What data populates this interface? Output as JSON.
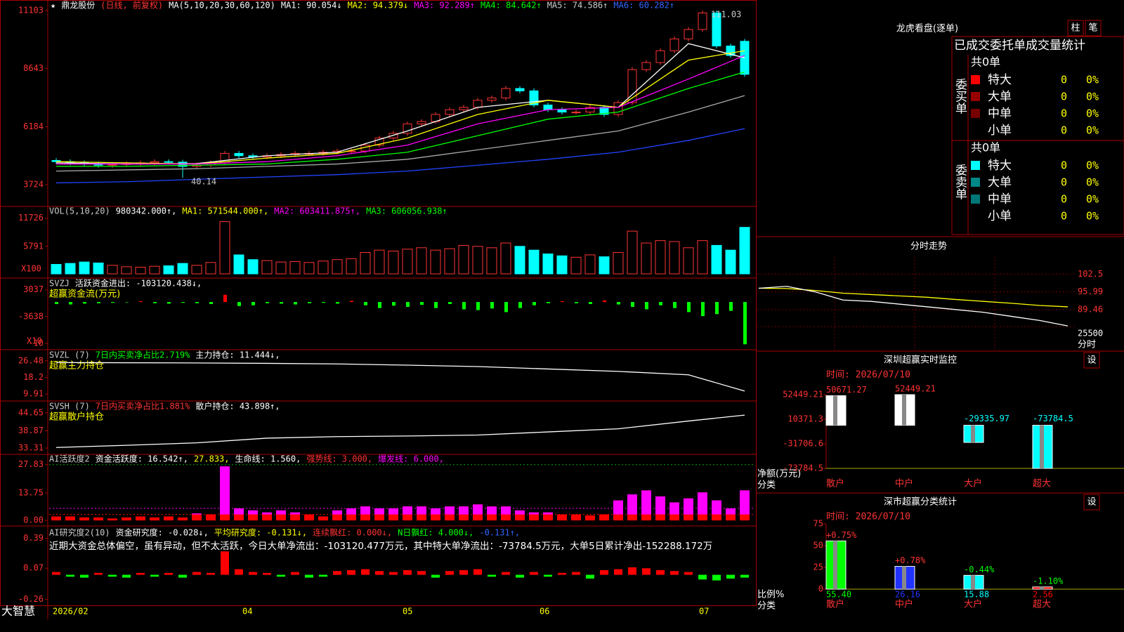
{
  "main": {
    "star": "★",
    "name": "鼎龙股份",
    "mode": "(日线, 前复权)",
    "ma_label": "MA(5,10,20,30,60,120)",
    "ma_readouts": [
      {
        "text": "MA1: 90.054↓",
        "color": "#ffffff"
      },
      {
        "text": "MA2: 94.379↓",
        "color": "#ffff00"
      },
      {
        "text": "MA3: 92.289↑",
        "color": "#ff00ff"
      },
      {
        "text": "MA4: 84.642↑",
        "color": "#00ff00"
      },
      {
        "text": "MA5: 74.586↑",
        "color": "#cccccc"
      },
      {
        "text": "MA6: 60.282↑",
        "color": "#3366ff"
      }
    ],
    "ylim": [
      2831,
      11549
    ],
    "yticks": [
      11103,
      8643,
      6184,
      3724
    ],
    "high_label": "111.03",
    "low_label": "40.14",
    "up_color": "#ff3333",
    "down_color": "#00ffff",
    "candles": {
      "open": [
        4750,
        4700,
        4650,
        4600,
        4550,
        4580,
        4620,
        4650,
        4700,
        4680,
        4500,
        4560,
        4650,
        5050,
        4950,
        4900,
        4950,
        5000,
        5050,
        5050,
        5100,
        5150,
        5150,
        5400,
        5700,
        5900,
        6300,
        6400,
        6700,
        6900,
        7000,
        7300,
        7400,
        7800,
        7700,
        7100,
        6900,
        6800,
        6800,
        7000,
        6700,
        7200,
        8600,
        8900,
        9400,
        9900,
        10300,
        11000,
        9600,
        9800
      ],
      "close": [
        4700,
        4650,
        4600,
        4550,
        4580,
        4620,
        4650,
        4700,
        4680,
        4500,
        4560,
        4650,
        5050,
        4950,
        4900,
        4950,
        5000,
        5050,
        5050,
        5100,
        5150,
        5150,
        5400,
        5700,
        5900,
        6300,
        6400,
        6700,
        6900,
        7000,
        7300,
        7400,
        7800,
        7700,
        7100,
        6900,
        6800,
        6800,
        7000,
        6700,
        7200,
        8600,
        8900,
        9400,
        9900,
        10300,
        11000,
        9600,
        9200,
        8400
      ],
      "high": [
        4850,
        4800,
        4750,
        4700,
        4680,
        4720,
        4750,
        4800,
        4800,
        4780,
        4660,
        4750,
        5150,
        5150,
        5050,
        5050,
        5100,
        5150,
        5150,
        5200,
        5250,
        5250,
        5500,
        5800,
        6000,
        6400,
        6500,
        6800,
        7000,
        7100,
        7400,
        7500,
        7900,
        7900,
        7800,
        7200,
        7000,
        6900,
        7100,
        7100,
        7300,
        8700,
        9000,
        9500,
        10000,
        10400,
        11103,
        11100,
        9700,
        9900
      ],
      "low": [
        4600,
        4550,
        4500,
        4450,
        4450,
        4480,
        4520,
        4550,
        4580,
        4014,
        4400,
        4460,
        4550,
        4850,
        4800,
        4800,
        4850,
        4900,
        4950,
        4950,
        5000,
        5050,
        5050,
        5300,
        5600,
        5800,
        6200,
        6300,
        6600,
        6800,
        6900,
        7200,
        7300,
        7600,
        7000,
        6800,
        6700,
        6700,
        6700,
        6600,
        6600,
        7100,
        8500,
        8800,
        9300,
        9800,
        10200,
        9500,
        9100,
        8300
      ]
    },
    "ma_x": [
      0,
      5,
      10,
      15,
      20,
      25,
      30,
      35,
      40,
      45,
      49
    ],
    "ma_lines": [
      {
        "color": "#ffffff",
        "values": [
          4650,
          4600,
          4620,
          4950,
          5100,
          6000,
          7000,
          7300,
          7000,
          9700,
          9100
        ]
      },
      {
        "color": "#ffff00",
        "values": [
          4700,
          4650,
          4600,
          4850,
          5050,
          5700,
          6700,
          7300,
          7000,
          9000,
          9400
        ]
      },
      {
        "color": "#ff00ff",
        "values": [
          4600,
          4600,
          4600,
          4700,
          4950,
          5400,
          6300,
          6900,
          7000,
          8200,
          9200
        ]
      },
      {
        "color": "#00ff00",
        "values": [
          4500,
          4500,
          4550,
          4600,
          4800,
          5100,
          5800,
          6500,
          6800,
          7800,
          8500
        ]
      },
      {
        "color": "#aaaaaa",
        "values": [
          4300,
          4350,
          4400,
          4500,
          4600,
          4800,
          5200,
          5600,
          6000,
          6800,
          7500
        ]
      },
      {
        "color": "#2244ff",
        "values": [
          3800,
          3850,
          3950,
          4050,
          4150,
          4300,
          4550,
          4800,
          5100,
          5600,
          6100
        ]
      }
    ]
  },
  "vol": {
    "header": [
      {
        "text": "VOL(5,10,20)",
        "color": "#cccccc"
      },
      {
        "text": "980342.000↑,",
        "color": "#ffffff"
      },
      {
        "text": "MA1: 571544.000↑,",
        "color": "#ffff00"
      },
      {
        "text": "MA2: 603411.875↑,",
        "color": "#ff00ff"
      },
      {
        "text": "MA3: 606056.938↑",
        "color": "#00ff00"
      }
    ],
    "ylim": [
      0,
      13900
    ],
    "yticks": [
      11726,
      5791
    ],
    "unit": "X100",
    "values": [
      2000,
      2200,
      2500,
      2300,
      1800,
      1500,
      1400,
      1600,
      1700,
      2200,
      1800,
      2400,
      11000,
      4000,
      3000,
      2800,
      2500,
      2600,
      2400,
      2700,
      3000,
      3200,
      4500,
      5000,
      4800,
      5200,
      5500,
      5000,
      5300,
      6000,
      5800,
      5500,
      6500,
      5800,
      5000,
      4200,
      3800,
      3500,
      4000,
      3600,
      4500,
      9000,
      6500,
      7000,
      6800,
      5500,
      7000,
      6000,
      5000,
      9800
    ]
  },
  "svzj": {
    "header": [
      {
        "text": "SVZJ",
        "color": "#cccccc"
      },
      {
        "text": "活跃资金进出: -103120.438↓,",
        "color": "#ffffff"
      }
    ],
    "subtitle": "超赢资金流(万元)",
    "subtitle_color": "#ffff00",
    "ylim": [
      -11500,
      5600
    ],
    "yticks": [
      3037,
      -3638,
      {
        "value": -10313,
        "label": "-10"
      }
    ],
    "unit": "X10",
    "pos_color": "#ff0000",
    "neg_color": "#00ff00",
    "values": [
      -500,
      -600,
      -400,
      -300,
      -200,
      -100,
      200,
      -300,
      -400,
      -200,
      -300,
      -500,
      1800,
      -1000,
      -800,
      -300,
      -400,
      -600,
      -300,
      -200,
      -400,
      300,
      -800,
      -1500,
      -900,
      -1200,
      -700,
      -1500,
      -500,
      -1800,
      -2000,
      -1600,
      -2500,
      -1500,
      -800,
      -300,
      200,
      -300,
      -500,
      400,
      -600,
      -1200,
      -1800,
      -800,
      -1500,
      -2500,
      -3500,
      -3000,
      -2200,
      -10500
    ]
  },
  "svzl": {
    "header": [
      {
        "text": "SVZL (7)",
        "color": "#cccccc"
      },
      {
        "text": "7日内买卖净占比2.719%",
        "color": "#00ff00"
      },
      {
        "text": "主力持仓: 11.444↓,",
        "color": "#ffffff"
      }
    ],
    "subtitle": "超赢主力持仓",
    "subtitle_color": "#ffff00",
    "ylim": [
      7.15,
      31.3
    ],
    "yticks": [
      26.48,
      18.2,
      9.91
    ],
    "x": [
      0,
      5,
      10,
      15,
      20,
      25,
      30,
      35,
      40,
      45,
      49
    ],
    "values": [
      25.6,
      25.5,
      25.4,
      25.2,
      24.9,
      24.3,
      23.6,
      22.4,
      21.2,
      19.5,
      11.4
    ]
  },
  "svsh": {
    "header": [
      {
        "text": "SVSH (7)",
        "color": "#cccccc"
      },
      {
        "text": "7日内买卖净占比1.881%",
        "color": "#ff3333"
      },
      {
        "text": "散户持仓: 43.898↑,",
        "color": "#ffffff"
      }
    ],
    "subtitle": "超赢散户持仓",
    "subtitle_color": "#ffff00",
    "ylim": [
      31.75,
      47.99
    ],
    "yticks": [
      44.65,
      38.87,
      33.31
    ],
    "x": [
      0,
      5,
      10,
      15,
      20,
      25,
      30,
      35,
      40,
      45,
      49
    ],
    "values": [
      33.5,
      34.2,
      35,
      36.5,
      37,
      37.2,
      37.5,
      38.5,
      39.5,
      42,
      43.9
    ]
  },
  "ai": {
    "header": [
      {
        "text": "AI活跃度2",
        "color": "#cccccc"
      },
      {
        "text": "资金活跃度: 16.542↑,",
        "color": "#ffffff"
      },
      {
        "text": "27.833,",
        "color": "#ffff00"
      },
      {
        "text": "生命线: 1.560,",
        "color": "#ffffff"
      },
      {
        "text": "强势线: 3.000,",
        "color": "#ff3333"
      },
      {
        "text": "爆发线: 6.000,",
        "color": "#ff00ff"
      }
    ],
    "ylim": [
      -2.06,
      32.3
    ],
    "yticks": [
      27.83,
      13.75,
      {
        "value": 0,
        "label": "0.00"
      }
    ],
    "strong": 3,
    "burst": 6,
    "base_color": "#ff0000",
    "top_color": "#ff00ff",
    "values": [
      2,
      2,
      1.5,
      1.5,
      1,
      1.5,
      2,
      1.5,
      2,
      1.5,
      3.5,
      3,
      27,
      6,
      5,
      4,
      5,
      4,
      3,
      2,
      5,
      6,
      7,
      6,
      6,
      7,
      7,
      6,
      7,
      7,
      8,
      7,
      7,
      5,
      4,
      4,
      3,
      3,
      2.5,
      3,
      10,
      13,
      15,
      12,
      9,
      11,
      14,
      10,
      6,
      15
    ]
  },
  "research": {
    "header": [
      {
        "text": "AI研究度2(10)",
        "color": "#cccccc"
      },
      {
        "text": "资金研究度: -0.028↓,",
        "color": "#ffffff"
      },
      {
        "text": "平均研究度: -0.131↓,",
        "color": "#ffff00"
      },
      {
        "text": "连续飘红: 0.000↓,",
        "color": "#ff3333"
      },
      {
        "text": "N日飘红: 4.000↓,",
        "color": "#00ff00"
      },
      {
        "text": "-0.131↑,",
        "color": "#3366ff"
      }
    ],
    "note": "近期大资金总体偏空，虽有异动，但不太活跃，今日大单净流出：-103120.477万元，其中特大单净流出：-73784.5万元，大单5日累计净出-152288.172万",
    "ylim": [
      -0.318,
      0.506
    ],
    "yticks": [
      0.39,
      0.07,
      -0.26
    ],
    "pos_color": "#ff0000",
    "neg_color": "#00ff00",
    "values": [
      0.03,
      -0.02,
      -0.03,
      0.02,
      -0.02,
      -0.03,
      0.02,
      -0.02,
      0.02,
      -0.03,
      0.03,
      0.02,
      0.25,
      0.06,
      0.03,
      0.02,
      -0.02,
      0.03,
      -0.03,
      -0.02,
      0.04,
      0.05,
      0.06,
      0.04,
      0.03,
      0.05,
      0.04,
      -0.03,
      0.04,
      0.05,
      0.06,
      -0.02,
      0.03,
      -0.03,
      0.03,
      -0.02,
      0.02,
      0.03,
      -0.04,
      0.05,
      0.06,
      0.08,
      0.07,
      0.05,
      0.04,
      0.03,
      -0.05,
      -0.06,
      -0.04,
      -0.03
    ]
  },
  "x_labels": [
    "2026/02",
    "04",
    "05",
    "06",
    "07"
  ],
  "brand": "大智慧",
  "dragon": {
    "title": "龙虎看盘(逐单)",
    "buttons": [
      "柱",
      "笔"
    ],
    "subtitle": "已成交委托单成交量统计",
    "buy": {
      "label": "委买单",
      "total": "共0单",
      "rows": [
        {
          "name": "特大",
          "color": "#ff0000",
          "count": 0,
          "pct": "0%"
        },
        {
          "name": "大单",
          "color": "#990000",
          "count": 0,
          "pct": "0%"
        },
        {
          "name": "中单",
          "color": "#770000",
          "count": 0,
          "pct": "0%"
        },
        {
          "name": "小单",
          "color": null,
          "count": 0,
          "pct": "0%"
        }
      ]
    },
    "sell": {
      "label": "委卖单",
      "total": "共0单",
      "rows": [
        {
          "name": "特大",
          "color": "#00ffff",
          "count": 0,
          "pct": "0%"
        },
        {
          "name": "大单",
          "color": "#008888",
          "count": 0,
          "pct": "0%"
        },
        {
          "name": "中单",
          "color": "#007777",
          "count": 0,
          "pct": "0%"
        },
        {
          "name": "小单",
          "color": null,
          "count": 0,
          "pct": "0%"
        }
      ]
    }
  },
  "intraday": {
    "title": "分时走势",
    "ylim": [
      82,
      109
    ],
    "yticks": [
      102.5,
      95.99,
      89.46
    ],
    "vol_label": "25500",
    "time_label": "分时",
    "price": [
      97.3,
      98,
      96,
      93,
      92.5,
      91.5,
      90.5,
      89.5,
      88.5,
      87,
      85.5,
      83.5
    ],
    "avg": [
      97.3,
      97.2,
      96.5,
      95.5,
      95,
      94.5,
      94,
      93.2,
      92.5,
      91.8,
      91,
      90.5
    ]
  },
  "sz_monitor": {
    "title": "深圳超赢实时监控",
    "button": "设",
    "time": "时间: 2026/07/10",
    "ylim": [
      -73784.5,
      52449.21
    ],
    "yticks": [
      52449.21,
      10371.3,
      -31706.6,
      -73784.5
    ],
    "axis_label": "净额(万元)",
    "cat_label": "分类",
    "categories": [
      "散户",
      "中户",
      "大户",
      "超大"
    ],
    "values": [
      50671.27,
      52449.21,
      -29335.97,
      -73784.5
    ],
    "pos_color": "#ffffff",
    "neg_color": "#00ffff"
  },
  "sz_class": {
    "title": "深市超赢分类统计",
    "button": "设",
    "time": "时间: 2026/07/10",
    "ylim": [
      0,
      75
    ],
    "yticks": [
      75,
      50,
      25,
      0
    ],
    "axis_label": "比例%",
    "cat_label": "分类",
    "categories": [
      "散户",
      "中户",
      "大户",
      "超大"
    ],
    "values": [
      55.4,
      26.16,
      15.88,
      2.56
    ],
    "value_labels": [
      "55.40",
      "26.16",
      "15.88",
      "2.56"
    ],
    "changes": [
      "+0.75%",
      "+0.78%",
      "-0.44%",
      "-1.10%"
    ],
    "colors": [
      "#00ff00",
      "#2233ff",
      "#00ffff",
      "#ff0000"
    ]
  }
}
